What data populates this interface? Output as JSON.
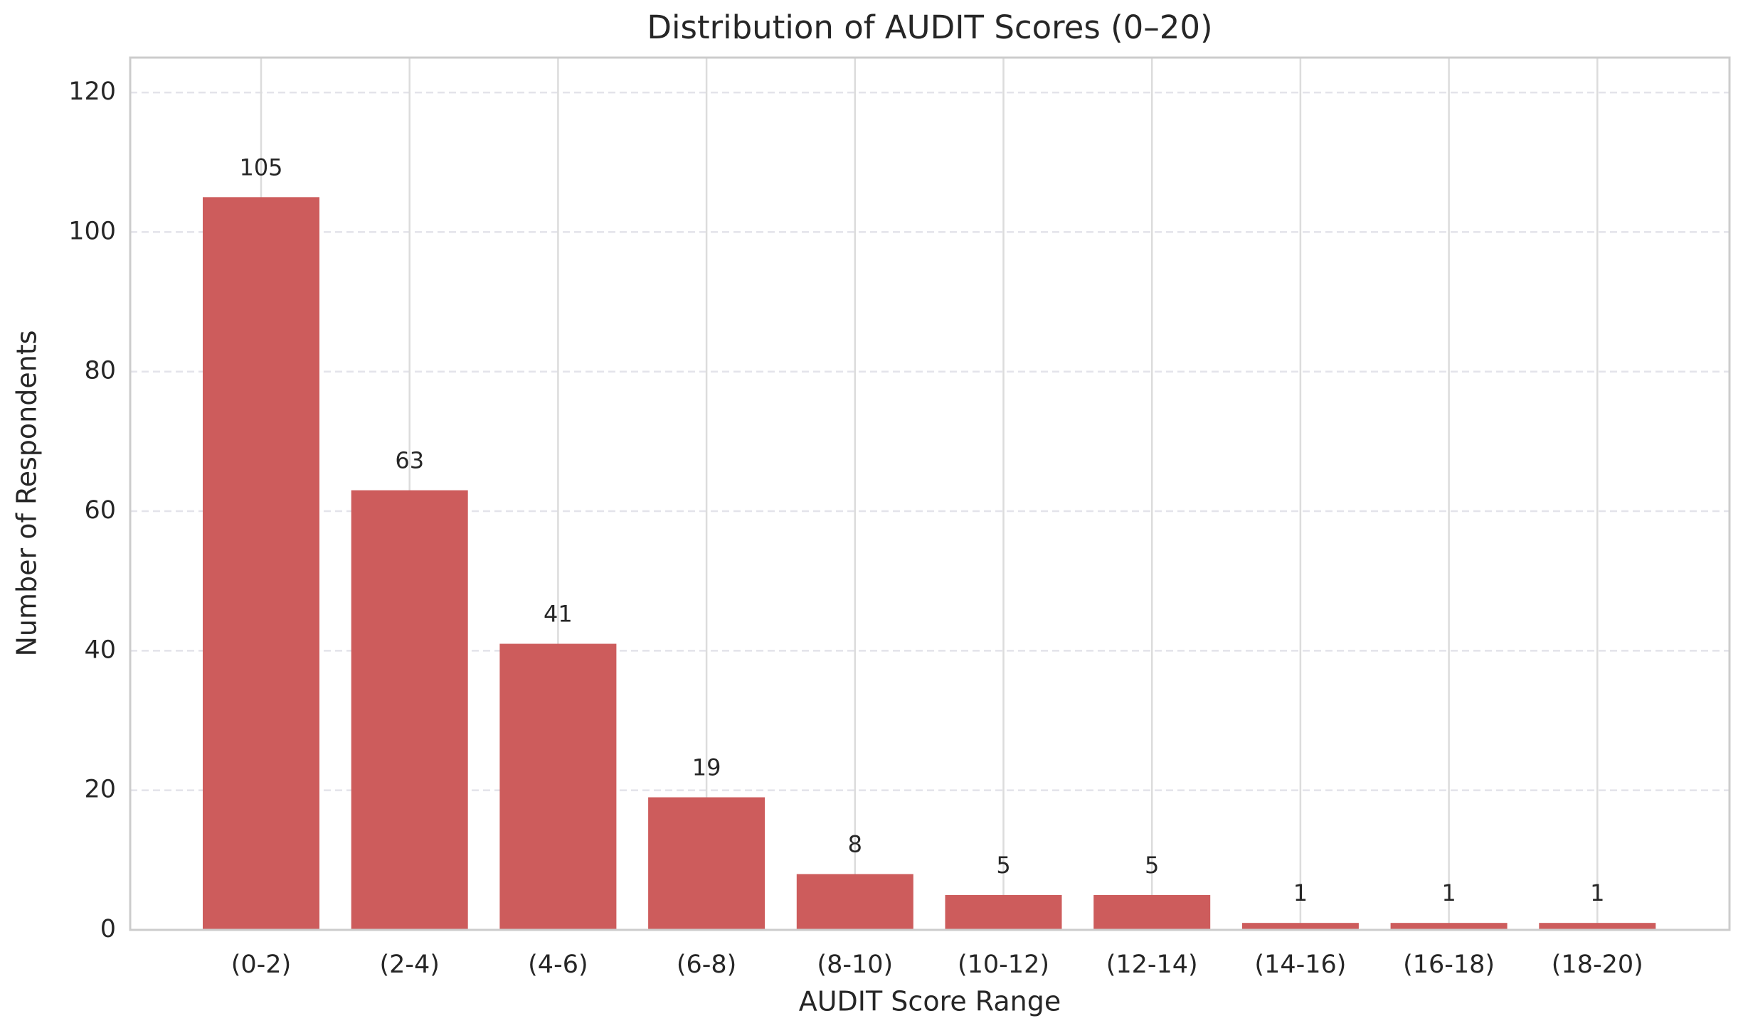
{
  "chart_data": {
    "type": "bar",
    "title": "Distribution of AUDIT Scores (0–20)",
    "x_label": "AUDIT Score Range",
    "y_label": "Number of Respondents",
    "categories": [
      "(0-2)",
      "(2-4)",
      "(4-6)",
      "(6-8)",
      "(8-10)",
      "(10-12)",
      "(12-14)",
      "(14-16)",
      "(16-18)",
      "(18-20)"
    ],
    "values": [
      105,
      63,
      41,
      19,
      8,
      5,
      5,
      1,
      1,
      1
    ],
    "color": "#cd5c5c",
    "ylim": [
      0,
      125
    ],
    "yticks": [
      0,
      20,
      40,
      60,
      80,
      100,
      120
    ],
    "grid": true
  }
}
